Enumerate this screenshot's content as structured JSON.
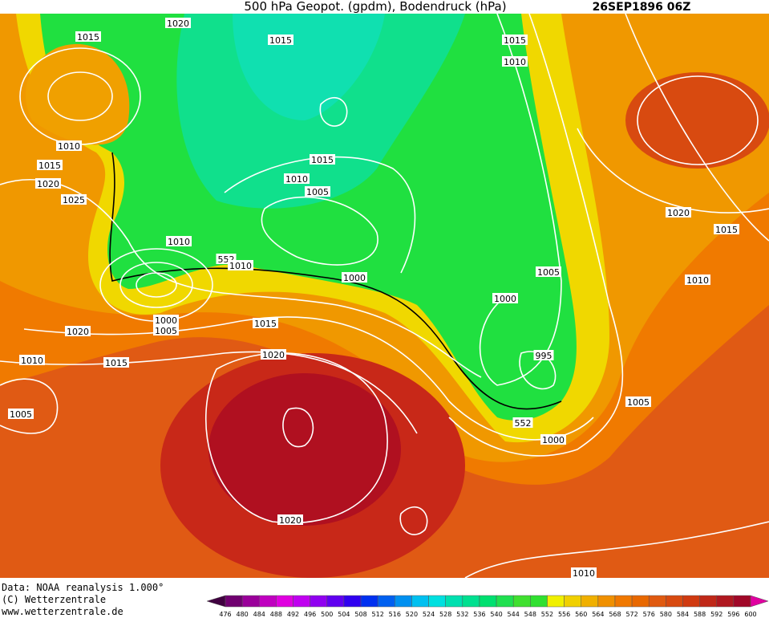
{
  "header": {
    "title": "500 hPa Geopot. (gpdm), Bodendruck (hPa)",
    "valid_time": "26SEP1896 06Z"
  },
  "isobar_labels": [
    "1020",
    "1015",
    "1015",
    "1015",
    "1010",
    "1010",
    "1015",
    "1020",
    "1025",
    "1015",
    "1010",
    "1005",
    "1010",
    "552",
    "1010",
    "1000",
    "1005",
    "1000",
    "1020",
    "1015",
    "1010",
    "1000",
    "1005",
    "1015",
    "1020",
    "1010",
    "1015",
    "1020",
    "995",
    "1005",
    "1005",
    "552",
    "1000",
    "1020",
    "1010"
  ],
  "footer": {
    "data_source": "Data: NOAA reanalysis 1.000°",
    "copyright": "(C) Wetterzentrale",
    "website": "www.wetterzentrale.de"
  },
  "legend": {
    "values": [
      476,
      480,
      484,
      488,
      492,
      496,
      500,
      504,
      508,
      512,
      516,
      520,
      524,
      528,
      532,
      536,
      540,
      544,
      548,
      552,
      556,
      560,
      564,
      568,
      572,
      576,
      580,
      584,
      588,
      592,
      596,
      600
    ],
    "colors": [
      "#400040",
      "#700070",
      "#9a009a",
      "#c000c0",
      "#e000e0",
      "#c000f0",
      "#9000f0",
      "#6000f0",
      "#3000f0",
      "#0030f0",
      "#0060f0",
      "#0090f0",
      "#00c0f0",
      "#00e0e0",
      "#00e0b0",
      "#00e090",
      "#00e070",
      "#20e050",
      "#40e030",
      "#30e030",
      "#f0f000",
      "#f0d000",
      "#f0b000",
      "#f09000",
      "#f07800",
      "#e86800",
      "#e05a10",
      "#d84a10",
      "#d03a10",
      "#c02818",
      "#b01820",
      "#a00828",
      "#e000a0"
    ]
  }
}
